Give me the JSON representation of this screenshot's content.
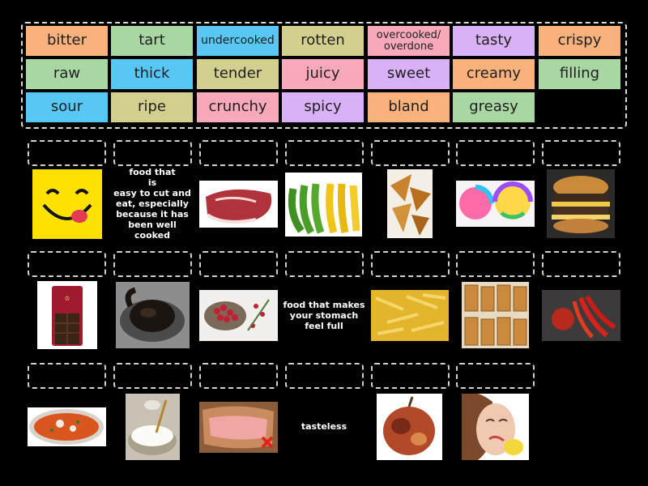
{
  "tile_colors": {
    "orange": "#f9b27c",
    "green": "#a9d7a3",
    "blue": "#58c7f3",
    "olive": "#d3d08f",
    "pink": "#f8a9b9",
    "purple": "#d9b1f7",
    "background": "#000000",
    "dash": "#d8d8d8"
  },
  "word_bank": [
    {
      "label": "bitter",
      "color": "orange"
    },
    {
      "label": "tart",
      "color": "green"
    },
    {
      "label": "undercooked",
      "color": "blue"
    },
    {
      "label": "rotten",
      "color": "olive"
    },
    {
      "label": "overcooked/\noverdone",
      "color": "pink"
    },
    {
      "label": "tasty",
      "color": "purple"
    },
    {
      "label": "crispy",
      "color": "orange"
    },
    {
      "label": "raw",
      "color": "green"
    },
    {
      "label": "thick",
      "color": "blue"
    },
    {
      "label": "tender",
      "color": "olive"
    },
    {
      "label": "juicy",
      "color": "pink"
    },
    {
      "label": "sweet",
      "color": "purple"
    },
    {
      "label": "creamy",
      "color": "orange"
    },
    {
      "label": "filling",
      "color": "green"
    },
    {
      "label": "sour",
      "color": "blue"
    },
    {
      "label": "ripe",
      "color": "olive"
    },
    {
      "label": "crunchy",
      "color": "pink"
    },
    {
      "label": "spicy",
      "color": "purple"
    },
    {
      "label": "bland",
      "color": "orange"
    },
    {
      "label": "greasy",
      "color": "green"
    }
  ],
  "definitions": {
    "tender": "food that\nis\neasy to cut and\neat, especially\nbecause it has\nbeen well cooked",
    "filling": "food that makes\nyour stomach\nfeel full",
    "bland": "tasteless"
  },
  "image_items": [
    "tasty-emoji",
    "raw-steak",
    "bananas",
    "fried-samosas",
    "lollipops",
    "greasy-burger",
    "dark-chocolate",
    "burnt-chicken",
    "berries",
    "crispy-fries",
    "granola-bars",
    "chili-peppers",
    "tomato-soup",
    "cream-bowl",
    "undercooked-meat",
    "rotten-apple",
    "sour-face-lemon"
  ]
}
